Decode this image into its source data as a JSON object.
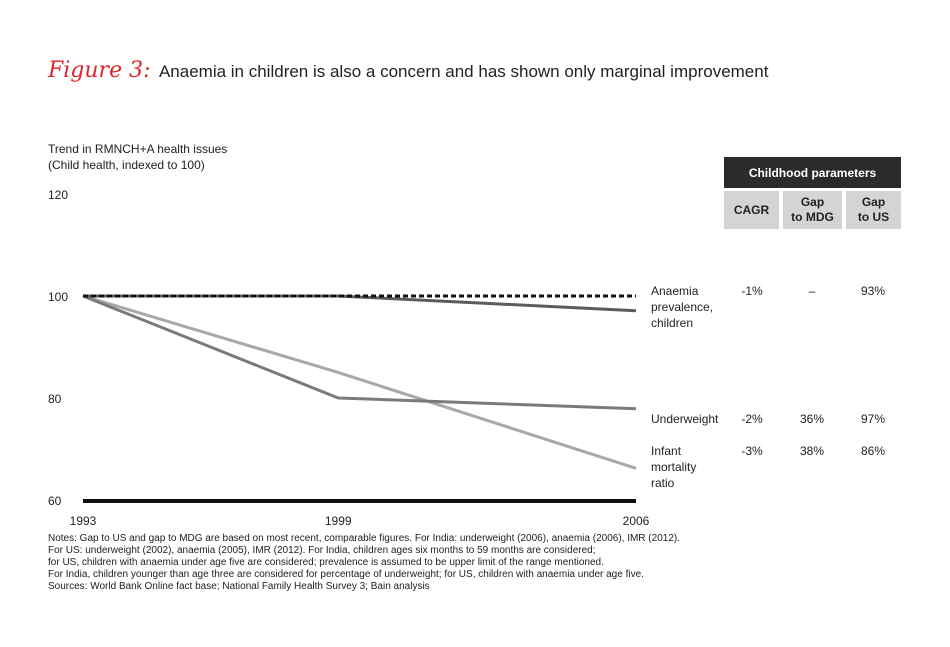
{
  "figure": {
    "label": "Figure 3:",
    "title": "Anaemia in children is also a concern and has shown only marginal improvement"
  },
  "chart_data": {
    "type": "line",
    "ylabel_lines": [
      "Trend in RMNCH+A health issues",
      "(Child health, indexed to 100)"
    ],
    "x": [
      1993,
      1999,
      2006
    ],
    "x_ticks": [
      "1993",
      "1999",
      "2006"
    ],
    "ylim": [
      60,
      120
    ],
    "y_ticks": [
      "60",
      "80",
      "100",
      "120"
    ],
    "reference_line": {
      "value": 100.2,
      "style": "dashed"
    },
    "series": [
      {
        "label_lines": [
          "Anaemia",
          "prevalence,",
          "children"
        ],
        "values": [
          100.2,
          100.2,
          97.3
        ],
        "color": "#5c5c5c"
      },
      {
        "label_lines": [
          "Underweight"
        ],
        "values": [
          100.2,
          80.2,
          78.1
        ],
        "color": "#7a7a7a"
      },
      {
        "label_lines": [
          "Infant",
          "mortality",
          "ratio"
        ],
        "values": [
          100.2,
          85.2,
          66.4
        ],
        "color": "#a8a8a8"
      }
    ],
    "table": {
      "header": "Childhood parameters",
      "columns": [
        "CAGR",
        "Gap\nto MDG",
        "Gap\nto US"
      ],
      "rows": [
        [
          "-1%",
          "–",
          "93%"
        ],
        [
          "-2%",
          "36%",
          "97%"
        ],
        [
          "-3%",
          "38%",
          "86%"
        ]
      ]
    }
  },
  "notes": [
    "Notes: Gap to US and gap to MDG are based on most recent, comparable figures. For India: underweight (2006), anaemia (2006), IMR (2012).",
    "For US: underweight (2002), anaemia (2005), IMR (2012). For India, children ages six months to 59 months are considered;",
    "for US, children with anaemia under age five are considered; prevalence is assumed to be upper limit of the range mentioned.",
    "For India, children younger than age three are considered for percentage of underweight; for US, children with anaemia under age five.",
    "Sources: World Bank Online fact base; National Family Health Survey 3; Bain analysis"
  ]
}
